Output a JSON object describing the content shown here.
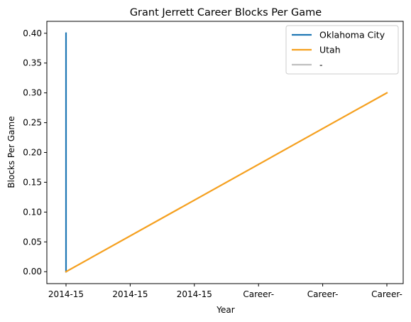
{
  "chart_data": {
    "type": "line",
    "title": "Grant Jerrett Career Blocks Per Game",
    "xlabel": "Year",
    "ylabel": "Blocks Per Game",
    "x_tick_labels": [
      "2014-15",
      "2014-15",
      "2014-15",
      "Career-",
      "Career-",
      "Career-"
    ],
    "ylim": [
      -0.02,
      0.42
    ],
    "y_ticks": [
      0.0,
      0.05,
      0.1,
      0.15,
      0.2,
      0.25,
      0.3,
      0.35,
      0.4
    ],
    "y_tick_labels": [
      "0.00",
      "0.05",
      "0.10",
      "0.15",
      "0.20",
      "0.25",
      "0.30",
      "0.35",
      "0.40"
    ],
    "grid": false,
    "legend_position": "top-right",
    "series": [
      {
        "name": "Oklahoma City",
        "color": "#1f77b4",
        "x_index": [
          0,
          0
        ],
        "values": [
          0.0,
          0.4
        ]
      },
      {
        "name": "Utah",
        "color": "#f5a01f",
        "x_index": [
          0,
          5
        ],
        "values": [
          0.0,
          0.3
        ]
      },
      {
        "name": "-",
        "color": "#bfbfbf",
        "x_index": [],
        "values": []
      }
    ]
  }
}
